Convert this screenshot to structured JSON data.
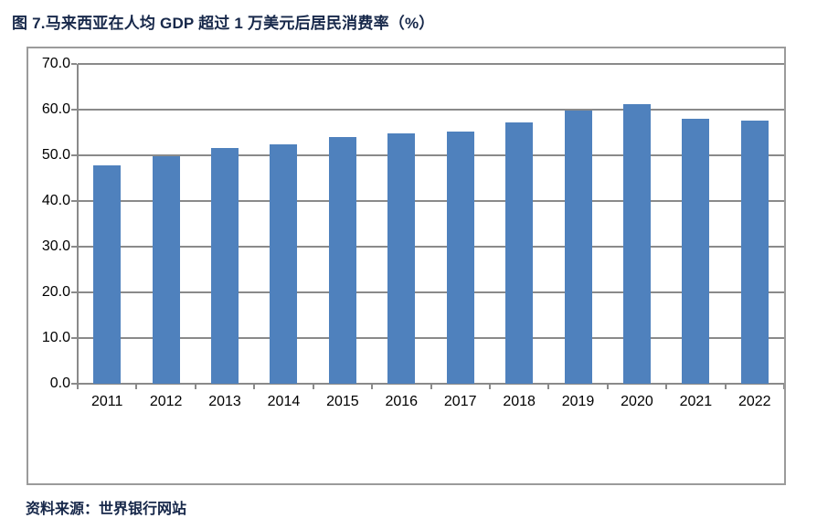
{
  "title": "图 7.马来西亚在人均 GDP 超过 1 万美元后居民消费率（%）",
  "source": "资料来源：世界银行网站",
  "colors": {
    "bar": "#4f81bd",
    "grid": "#8a8a8a",
    "box_border": "#9b9b9b",
    "heading": "#17284a"
  },
  "chart_data": {
    "type": "bar",
    "title": "图 7.马来西亚在人均 GDP 超过 1 万美元后居民消费率（%）",
    "categories": [
      "2011",
      "2012",
      "2013",
      "2014",
      "2015",
      "2016",
      "2017",
      "2018",
      "2019",
      "2020",
      "2021",
      "2022"
    ],
    "values": [
      47.9,
      49.9,
      51.6,
      52.4,
      54.0,
      54.8,
      55.3,
      57.3,
      59.8,
      61.3,
      58.1,
      57.6
    ],
    "xlabel": "",
    "ylabel": "",
    "ylim": [
      0,
      70
    ],
    "ytick_step": 10,
    "ytick_labels": [
      "0.0",
      "10.0",
      "20.0",
      "30.0",
      "40.0",
      "50.0",
      "60.0",
      "70.0"
    ],
    "grid": true,
    "legend": "none",
    "bar_color": "#4f81bd"
  }
}
